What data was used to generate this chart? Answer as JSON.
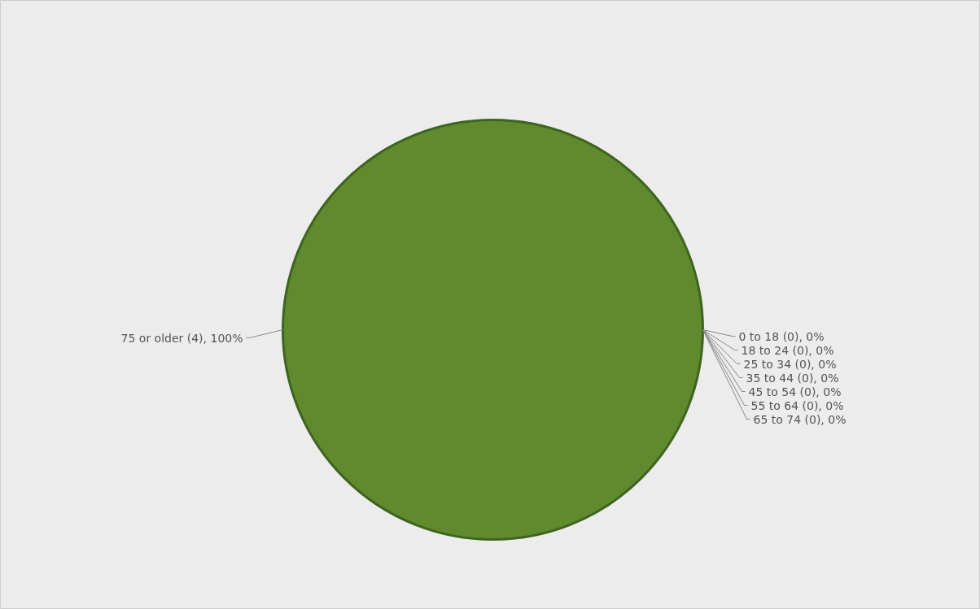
{
  "chart_data": {
    "type": "pie",
    "categories": [
      "0 to 18",
      "18 to 24",
      "25 to 34",
      "35 to 44",
      "45 to 54",
      "55 to 64",
      "65 to 74",
      "75 or older"
    ],
    "values": [
      0,
      0,
      0,
      0,
      0,
      0,
      0,
      4
    ],
    "value_labels": [
      "(0), 0%",
      "(0), 0%",
      "(0), 0%",
      "(0), 0%",
      "(0), 0%",
      "(0), 0%",
      "(0), 0%",
      "(4), 100%"
    ],
    "colors": [
      "#4f81bd",
      "#c0504d",
      "#9bbb59",
      "#8064a2",
      "#4bacc6",
      "#f79646",
      "#2c4d75",
      "#5f8a2e"
    ]
  }
}
